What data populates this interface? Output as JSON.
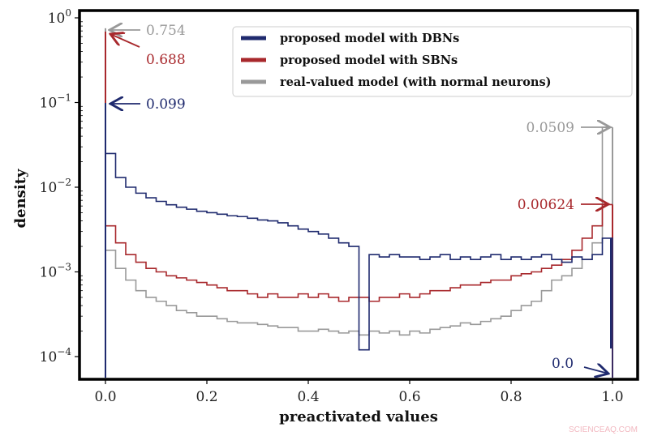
{
  "chart_data": {
    "type": "line",
    "subtype": "step-histogram",
    "xlabel": "preactivated values",
    "ylabel": "density",
    "xlim": [
      -0.05,
      1.05
    ],
    "ylim": [
      5.4e-05,
      1.22
    ],
    "yscale": "log",
    "grid": false,
    "legend_position": "top-right",
    "x_ticks": [
      "0.0",
      "0.2",
      "0.4",
      "0.6",
      "0.8",
      "1.0"
    ],
    "x_tick_values": [
      0,
      0.2,
      0.4,
      0.6,
      0.8,
      1.0
    ],
    "y_ticks": [
      {
        "base": "10",
        "exp": "0"
      },
      {
        "base": "10",
        "exp": "−1"
      },
      {
        "base": "10",
        "exp": "−2"
      },
      {
        "base": "10",
        "exp": "−3"
      },
      {
        "base": "10",
        "exp": "−4"
      }
    ],
    "y_tick_values": [
      1,
      0.1,
      0.01,
      0.001,
      0.0001
    ],
    "bin_width": 0.02,
    "series": [
      {
        "name": "proposed model with DBNs",
        "color": "#1f2a6e",
        "spike_at_0": 0.099,
        "spike_at_1": 0.0,
        "values": [
          0.025,
          0.013,
          0.01,
          0.0085,
          0.0075,
          0.0068,
          0.0062,
          0.0058,
          0.0055,
          0.0052,
          0.005,
          0.0048,
          0.0046,
          0.0045,
          0.0043,
          0.0041,
          0.004,
          0.0038,
          0.0035,
          0.0032,
          0.003,
          0.0028,
          0.0025,
          0.0022,
          0.002,
          0.00012,
          0.0016,
          0.0015,
          0.0016,
          0.0015,
          0.0015,
          0.0014,
          0.0015,
          0.0016,
          0.0014,
          0.0015,
          0.0014,
          0.0015,
          0.0016,
          0.0014,
          0.0015,
          0.0014,
          0.0015,
          0.0016,
          0.0014,
          0.0013,
          0.0015,
          0.0014,
          0.0016,
          0.0025
        ]
      },
      {
        "name": "proposed model with SBNs",
        "color": "#a8282c",
        "spike_at_0": 0.688,
        "spike_at_1": 0.00624,
        "values": [
          0.0035,
          0.0022,
          0.0016,
          0.0013,
          0.0011,
          0.001,
          0.0009,
          0.00085,
          0.0008,
          0.00075,
          0.0007,
          0.00065,
          0.0006,
          0.0006,
          0.00055,
          0.0005,
          0.00055,
          0.0005,
          0.0005,
          0.00055,
          0.0005,
          0.00055,
          0.0005,
          0.00045,
          0.0005,
          0.0005,
          0.00045,
          0.0005,
          0.0005,
          0.00055,
          0.0005,
          0.00055,
          0.0006,
          0.0006,
          0.00065,
          0.0007,
          0.0007,
          0.00075,
          0.0008,
          0.0008,
          0.0009,
          0.00095,
          0.001,
          0.0011,
          0.0012,
          0.0014,
          0.0018,
          0.0025,
          0.0035,
          0.00624
        ]
      },
      {
        "name": "real-valued model (with normal neurons)",
        "color": "#999999",
        "spike_at_0": 0.754,
        "spike_at_1": 0.0509,
        "values": [
          0.0018,
          0.0011,
          0.0008,
          0.0006,
          0.0005,
          0.00045,
          0.0004,
          0.00035,
          0.00033,
          0.0003,
          0.0003,
          0.00028,
          0.00026,
          0.00025,
          0.00025,
          0.00024,
          0.00023,
          0.00022,
          0.00022,
          0.0002,
          0.0002,
          0.00021,
          0.0002,
          0.00019,
          0.0002,
          0.00018,
          0.0002,
          0.00019,
          0.0002,
          0.00018,
          0.0002,
          0.00019,
          0.00021,
          0.00022,
          0.00023,
          0.00025,
          0.00024,
          0.00026,
          0.00028,
          0.0003,
          0.00035,
          0.0004,
          0.00045,
          0.0006,
          0.0008,
          0.0009,
          0.0011,
          0.0014,
          0.0022,
          0.0509
        ]
      }
    ],
    "annotations": [
      {
        "text": "0.754",
        "color": "#999999"
      },
      {
        "text": "0.688",
        "color": "#a8282c"
      },
      {
        "text": "0.099",
        "color": "#1f2a6e"
      },
      {
        "text": "0.0509",
        "color": "#999999"
      },
      {
        "text": "0.00624",
        "color": "#a8282c"
      },
      {
        "text": "0.0",
        "color": "#1f2a6e"
      }
    ]
  },
  "watermark": "SCIENCEAQ.COM"
}
